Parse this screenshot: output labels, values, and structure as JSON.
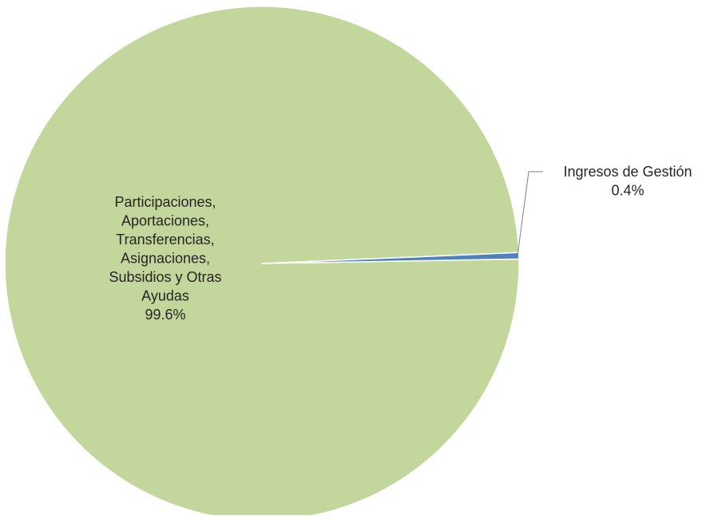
{
  "chart_data": {
    "type": "pie",
    "title": "",
    "slices": [
      {
        "label_lines": [
          "Participaciones,",
          "Aportaciones,",
          "Transferencias,",
          "Asignaciones,",
          "Subsidios y Otras",
          "Ayudas"
        ],
        "percent_label": "99.6%",
        "value": 99.6,
        "color": "#c3d69b"
      },
      {
        "label_lines": [
          "Ingresos de Gestión"
        ],
        "percent_label": "0.4%",
        "value": 0.4,
        "color": "#4f81bd"
      }
    ],
    "slice_border_color": "#ffffff",
    "leader_line_color": "#7f7f7f",
    "legend": "none"
  }
}
